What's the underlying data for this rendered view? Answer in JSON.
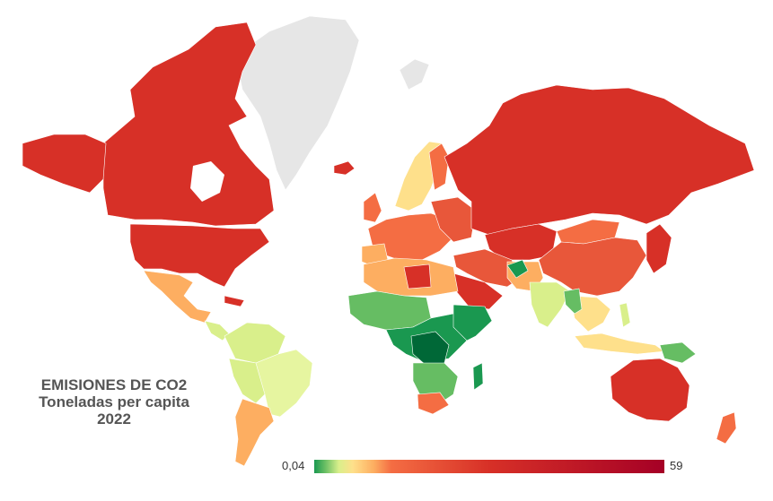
{
  "title": {
    "line1": "EMISIONES DE CO2",
    "line2": "Toneladas per capita",
    "line3": "2022"
  },
  "legend": {
    "min_label": "0,04",
    "max_label": "59",
    "gradient_colors": [
      "#1a9850",
      "#66bd63",
      "#d9ef8b",
      "#fee08b",
      "#fdae61",
      "#f46d43",
      "#d73027",
      "#a50026"
    ]
  },
  "colors": {
    "background": "#ffffff",
    "no_data": "#e6e6e6",
    "very_high": "#d73027",
    "high": "#e8573a",
    "mid_high": "#f46d43",
    "mid": "#fdae61",
    "low_mid": "#fee08b",
    "low": "#d9ef8b",
    "very_low": "#66bd63",
    "lowest": "#1a9850"
  }
}
